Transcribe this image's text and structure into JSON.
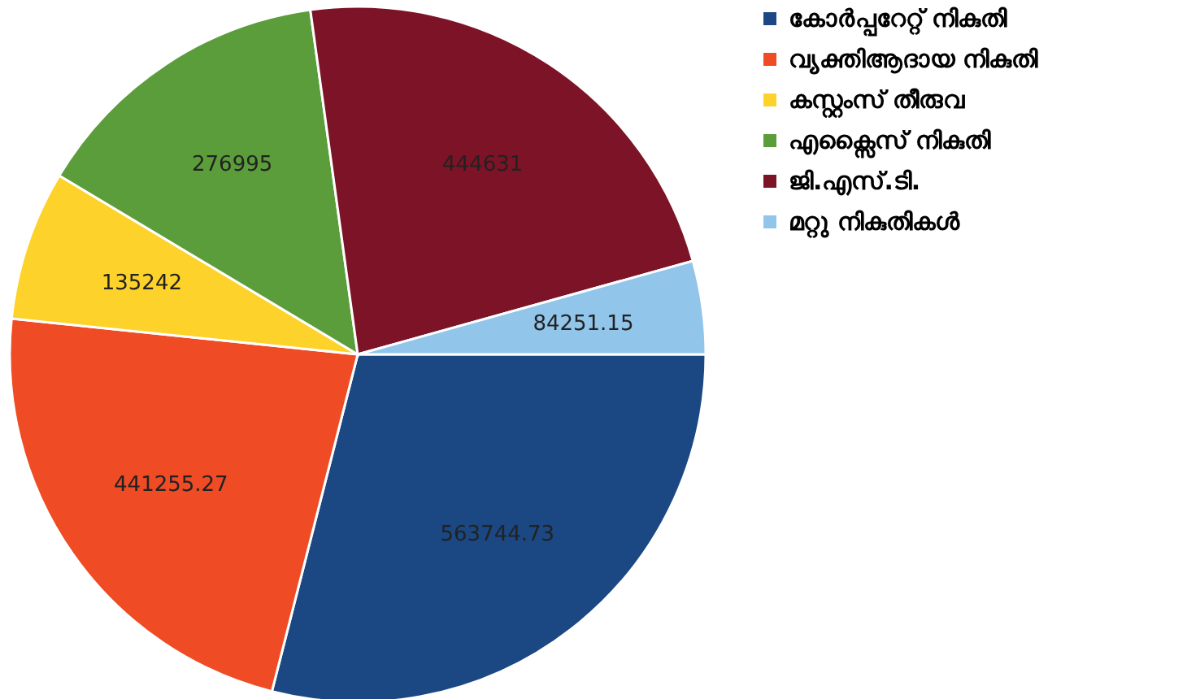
{
  "chart_data": {
    "type": "pie",
    "categories": [
      "കോർപ്പറേറ്റ് നികുതി",
      "വ്യക്തിആദായ നികുതി",
      "കസ്റ്റംസ് തീരുവ",
      "എക്സൈസ് നികുതി",
      "ജി.എസ്.ടി.",
      "മറ്റു നികുതികൾ"
    ],
    "values": [
      563744.73,
      441255.27,
      135242,
      276995,
      444631,
      84251.15
    ],
    "colors": [
      "#1b4882",
      "#ef4b24",
      "#fdd22a",
      "#5c9d3b",
      "#7c1326",
      "#92c5ea"
    ],
    "data_labels": true,
    "legend": "right"
  }
}
